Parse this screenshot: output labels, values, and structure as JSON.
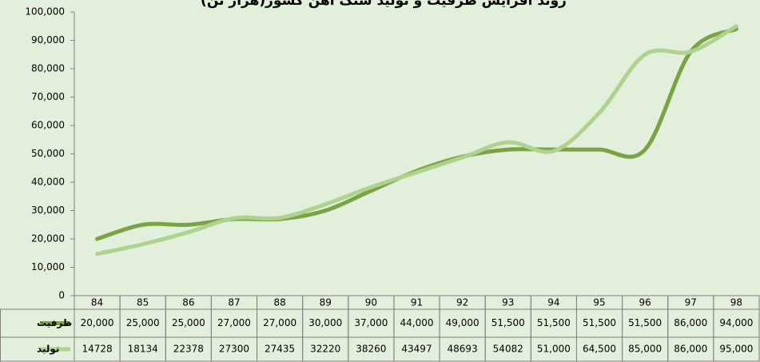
{
  "chart_data": {
    "type": "line",
    "title": "روند افزایش ظرفیت و تولید سنگ آهن کشور(هزار تن)",
    "categories": [
      "84",
      "85",
      "86",
      "87",
      "88",
      "89",
      "90",
      "91",
      "92",
      "93",
      "94",
      "95",
      "96",
      "97",
      "98"
    ],
    "series": [
      {
        "name": "ظرفیت",
        "color": "#7aa443",
        "values": [
          20000,
          25000,
          25000,
          27000,
          27000,
          30000,
          37000,
          44000,
          49000,
          51500,
          51500,
          51500,
          51500,
          86000,
          94000
        ],
        "value_labels": [
          "20,000",
          "25,000",
          "25,000",
          "27,000",
          "27,000",
          "30,000",
          "37,000",
          "44,000",
          "49,000",
          "51,500",
          "51,500",
          "51,500",
          "51,500",
          "86,000",
          "94,000"
        ]
      },
      {
        "name": "تولید",
        "color": "#add38f",
        "values": [
          14728,
          18134,
          22378,
          27300,
          27435,
          32220,
          38260,
          43497,
          48693,
          54082,
          51000,
          64500,
          85000,
          86000,
          95000
        ],
        "value_labels": [
          "14728",
          "18134",
          "22378",
          "27300",
          "27435",
          "32220",
          "38260",
          "43497",
          "48693",
          "54082",
          "51,000",
          "64,500",
          "85,000",
          "86,000",
          "95,000"
        ]
      }
    ],
    "ylim": [
      0,
      100000
    ],
    "yticks": [
      0,
      {
        "value": 10000,
        "label": "10,000"
      },
      {
        "value": 20000,
        "label": "20,000"
      },
      {
        "value": 30000,
        "label": "30,000"
      },
      {
        "value": 40000,
        "label": "40,000"
      },
      {
        "value": 50000,
        "label": "50,000"
      },
      {
        "value": 60000,
        "label": "60,000"
      },
      {
        "value": 70000,
        "label": "70,000"
      },
      {
        "value": 80000,
        "label": "80,000"
      },
      {
        "value": 90000,
        "label": "90,000"
      },
      {
        "value": 100000,
        "label": "100,000"
      }
    ]
  }
}
